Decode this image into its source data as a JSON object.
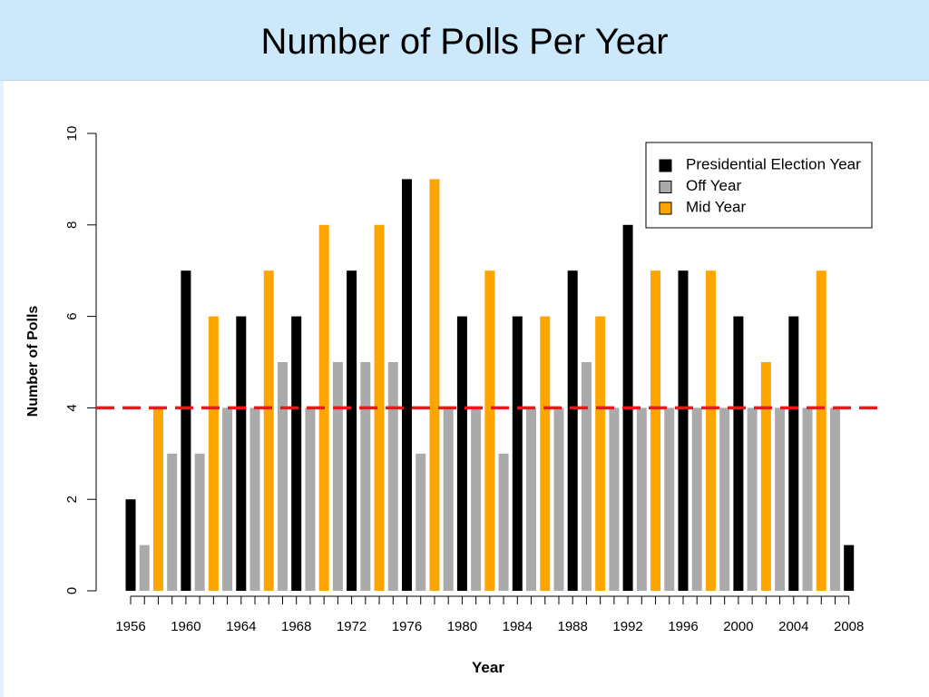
{
  "slide": {
    "title": "Number of Polls Per Year"
  },
  "colors": {
    "title_bar": "#cce8fb",
    "presidential": "#000000",
    "off": "#aaaaaa",
    "mid": "#ffa500",
    "reference_line": "#e41a1c"
  },
  "chart_data": {
    "type": "bar",
    "xlabel": "Year",
    "ylabel": "Number of Polls",
    "ylim": [
      0,
      10
    ],
    "yticks": [
      0,
      2,
      4,
      6,
      8,
      10
    ],
    "xtick_labels": [
      "1956",
      "1960",
      "1964",
      "1968",
      "1972",
      "1976",
      "1980",
      "1984",
      "1988",
      "1992",
      "1996",
      "2000",
      "2004",
      "2008"
    ],
    "grid": false,
    "legend_position": "top-right",
    "legend": [
      {
        "label": "Presidential Election Year",
        "type": "presidential"
      },
      {
        "label": "Off Year",
        "type": "off"
      },
      {
        "label": "Mid Year",
        "type": "mid"
      }
    ],
    "reference_line": {
      "y": 4,
      "style": "dashed"
    },
    "years": [
      1956,
      1957,
      1958,
      1959,
      1960,
      1961,
      1962,
      1963,
      1964,
      1965,
      1966,
      1967,
      1968,
      1969,
      1970,
      1971,
      1972,
      1973,
      1974,
      1975,
      1976,
      1977,
      1978,
      1979,
      1980,
      1981,
      1982,
      1983,
      1984,
      1985,
      1986,
      1987,
      1988,
      1989,
      1990,
      1991,
      1992,
      1993,
      1994,
      1995,
      1996,
      1997,
      1998,
      1999,
      2000,
      2001,
      2002,
      2003,
      2004,
      2005,
      2006,
      2007,
      2008
    ],
    "values": [
      2,
      1,
      4,
      3,
      7,
      3,
      6,
      4,
      6,
      4,
      7,
      5,
      6,
      4,
      8,
      5,
      7,
      5,
      8,
      5,
      9,
      3,
      9,
      4,
      6,
      4,
      7,
      3,
      6,
      4,
      6,
      4,
      7,
      5,
      6,
      4,
      8,
      4,
      7,
      4,
      7,
      4,
      7,
      4,
      6,
      4,
      5,
      4,
      6,
      4,
      7,
      4,
      1
    ],
    "types": [
      "presidential",
      "off",
      "mid",
      "off",
      "presidential",
      "off",
      "mid",
      "off",
      "presidential",
      "off",
      "mid",
      "off",
      "presidential",
      "off",
      "mid",
      "off",
      "presidential",
      "off",
      "mid",
      "off",
      "presidential",
      "off",
      "mid",
      "off",
      "presidential",
      "off",
      "mid",
      "off",
      "presidential",
      "off",
      "mid",
      "off",
      "presidential",
      "off",
      "mid",
      "off",
      "presidential",
      "off",
      "mid",
      "off",
      "presidential",
      "off",
      "mid",
      "off",
      "presidential",
      "off",
      "mid",
      "off",
      "presidential",
      "off",
      "mid",
      "off",
      "presidential"
    ]
  }
}
